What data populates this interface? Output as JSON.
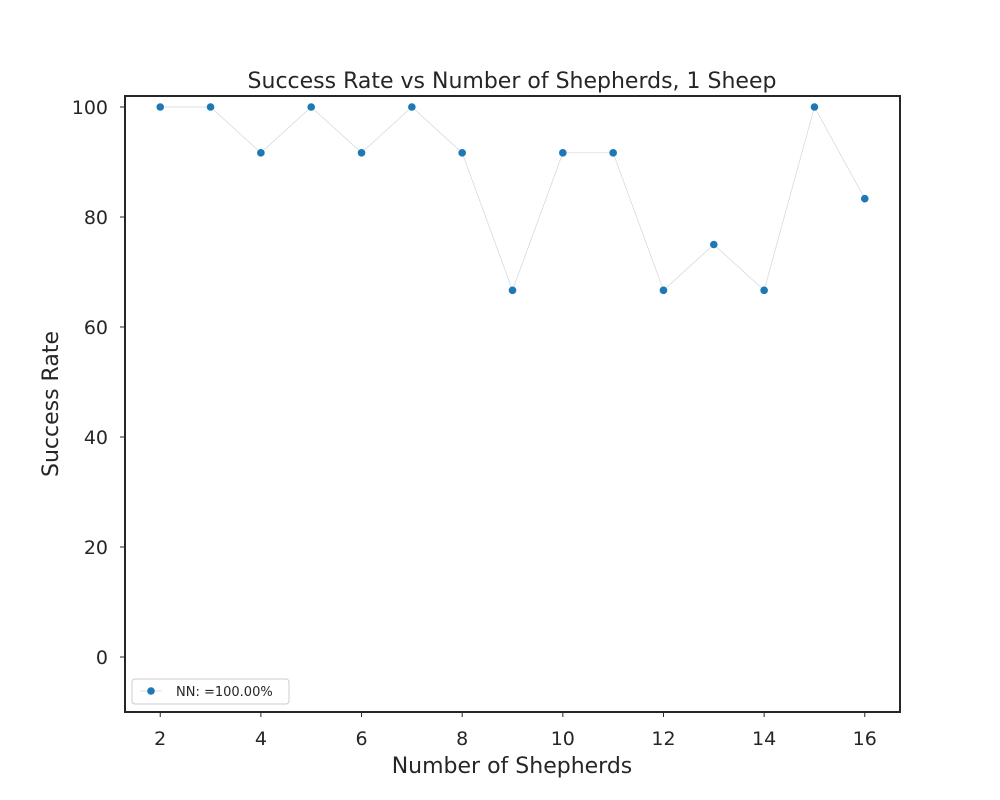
{
  "chart_data": {
    "type": "line",
    "title": "Success Rate vs Number of Shepherds, 1 Sheep",
    "xlabel": "Number of Shepherds",
    "ylabel": "Success Rate",
    "xlim": [
      1.3,
      16.7
    ],
    "ylim": [
      -10,
      102
    ],
    "xticks": [
      2,
      4,
      6,
      8,
      10,
      12,
      14,
      16
    ],
    "yticks": [
      0,
      20,
      40,
      60,
      80,
      100
    ],
    "grid": false,
    "legend_position": "lower-left",
    "series": [
      {
        "name": "NN: $=100.00\\%$",
        "color": "#1f77b4",
        "x": [
          2,
          3,
          4,
          5,
          6,
          7,
          8,
          9,
          10,
          11,
          12,
          13,
          14,
          15,
          16
        ],
        "y": [
          100,
          100,
          91.67,
          100,
          91.67,
          100,
          91.67,
          66.67,
          91.67,
          91.67,
          66.67,
          75,
          66.67,
          100,
          83.33
        ]
      }
    ],
    "legend_label_display": "NN: =100.00%"
  }
}
